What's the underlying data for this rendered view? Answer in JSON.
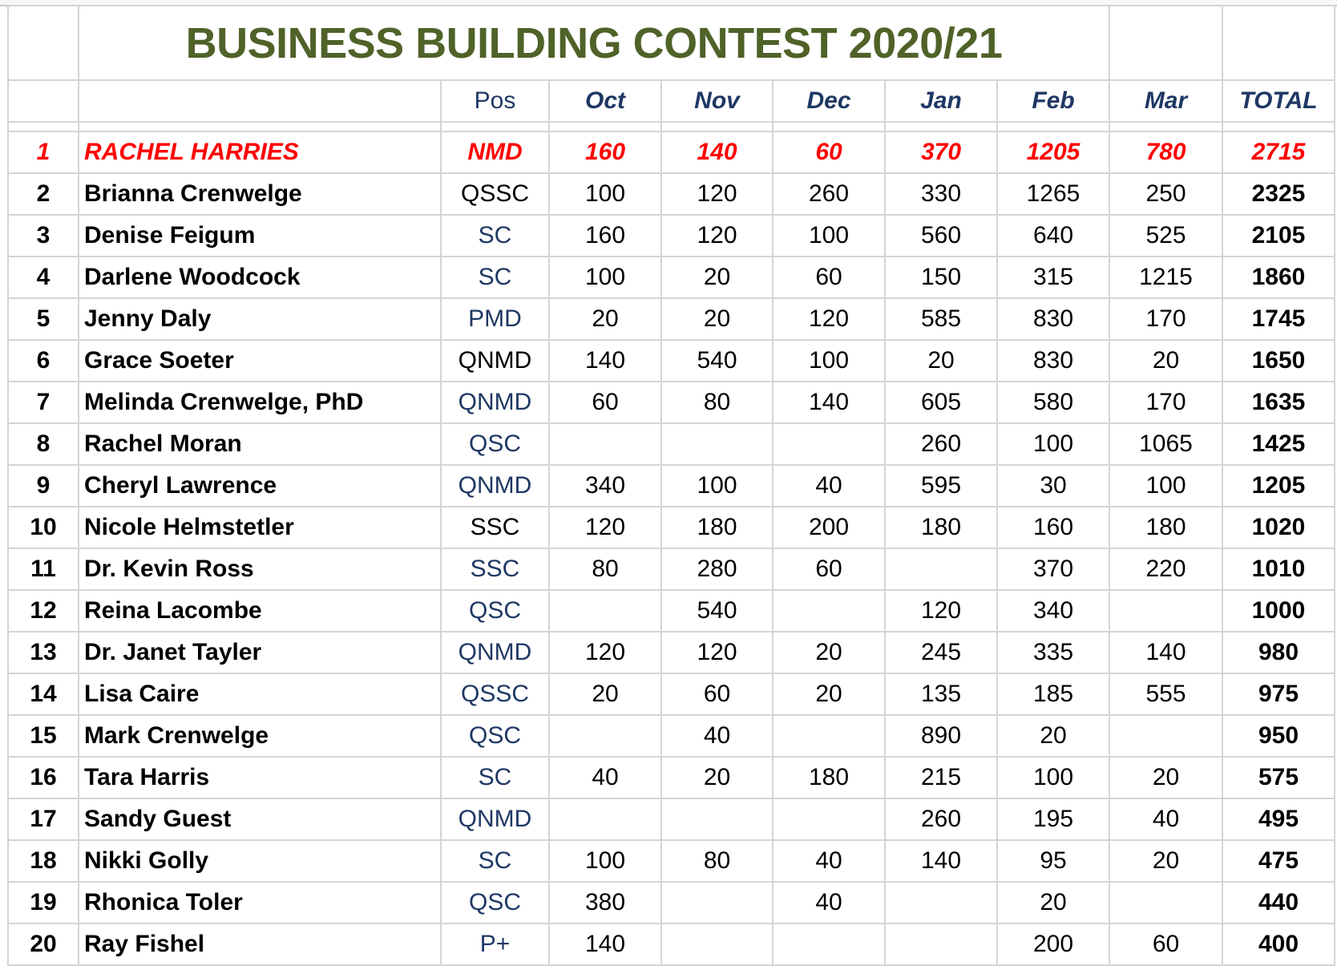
{
  "title": "BUSINESS BUILDING CONTEST 2020/21",
  "headers": {
    "pos": "Pos",
    "months": [
      "Oct",
      "Nov",
      "Dec",
      "Jan",
      "Feb",
      "Mar"
    ],
    "total": "TOTAL"
  },
  "colors": {
    "title": "#4f6228",
    "header": "#1f3864",
    "leader": "#ff0000",
    "pos_blue": "#1f3864"
  },
  "rows": [
    {
      "rank": "1",
      "name": "RACHEL HARRIES",
      "pos": "NMD",
      "pos_color": "red",
      "m": [
        "160",
        "140",
        "60",
        "370",
        "1205",
        "780"
      ],
      "total": "2715"
    },
    {
      "rank": "2",
      "name": "Brianna Crenwelge",
      "pos": "QSSC",
      "pos_color": "black",
      "m": [
        "100",
        "120",
        "260",
        "330",
        "1265",
        "250"
      ],
      "total": "2325"
    },
    {
      "rank": "3",
      "name": "Denise Feigum",
      "pos": "SC",
      "pos_color": "blue",
      "m": [
        "160",
        "120",
        "100",
        "560",
        "640",
        "525"
      ],
      "total": "2105"
    },
    {
      "rank": "4",
      "name": "Darlene Woodcock",
      "pos": "SC",
      "pos_color": "blue",
      "m": [
        "100",
        "20",
        "60",
        "150",
        "315",
        "1215"
      ],
      "total": "1860"
    },
    {
      "rank": "5",
      "name": "Jenny Daly",
      "pos": "PMD",
      "pos_color": "blue",
      "m": [
        "20",
        "20",
        "120",
        "585",
        "830",
        "170"
      ],
      "total": "1745"
    },
    {
      "rank": "6",
      "name": "Grace Soeter",
      "pos": "QNMD",
      "pos_color": "black",
      "m": [
        "140",
        "540",
        "100",
        "20",
        "830",
        "20"
      ],
      "total": "1650"
    },
    {
      "rank": "7",
      "name": "Melinda Crenwelge, PhD",
      "pos": "QNMD",
      "pos_color": "blue",
      "m": [
        "60",
        "80",
        "140",
        "605",
        "580",
        "170"
      ],
      "total": "1635"
    },
    {
      "rank": "8",
      "name": "Rachel Moran",
      "pos": "QSC",
      "pos_color": "blue",
      "m": [
        "",
        "",
        "",
        "260",
        "100",
        "1065"
      ],
      "total": "1425"
    },
    {
      "rank": "9",
      "name": "Cheryl Lawrence",
      "pos": "QNMD",
      "pos_color": "blue",
      "m": [
        "340",
        "100",
        "40",
        "595",
        "30",
        "100"
      ],
      "total": "1205"
    },
    {
      "rank": "10",
      "name": "Nicole Helmstetler",
      "pos": "SSC",
      "pos_color": "black",
      "m": [
        "120",
        "180",
        "200",
        "180",
        "160",
        "180"
      ],
      "total": "1020"
    },
    {
      "rank": "11",
      "name": "Dr. Kevin Ross",
      "pos": "SSC",
      "pos_color": "blue",
      "m": [
        "80",
        "280",
        "60",
        "",
        "370",
        "220"
      ],
      "total": "1010"
    },
    {
      "rank": "12",
      "name": "Reina Lacombe",
      "pos": "QSC",
      "pos_color": "blue",
      "m": [
        "",
        "540",
        "",
        "120",
        "340",
        ""
      ],
      "total": "1000"
    },
    {
      "rank": "13",
      "name": "Dr. Janet Tayler",
      "pos": "QNMD",
      "pos_color": "blue",
      "m": [
        "120",
        "120",
        "20",
        "245",
        "335",
        "140"
      ],
      "total": "980"
    },
    {
      "rank": "14",
      "name": "Lisa Caire",
      "pos": "QSSC",
      "pos_color": "blue",
      "m": [
        "20",
        "60",
        "20",
        "135",
        "185",
        "555"
      ],
      "total": "975"
    },
    {
      "rank": "15",
      "name": "Mark Crenwelge",
      "pos": "QSC",
      "pos_color": "blue",
      "m": [
        "",
        "40",
        "",
        "890",
        "20",
        ""
      ],
      "total": "950"
    },
    {
      "rank": "16",
      "name": "Tara Harris",
      "pos": "SC",
      "pos_color": "blue",
      "m": [
        "40",
        "20",
        "180",
        "215",
        "100",
        "20"
      ],
      "total": "575"
    },
    {
      "rank": "17",
      "name": "Sandy Guest",
      "pos": "QNMD",
      "pos_color": "blue",
      "m": [
        "",
        "",
        "",
        "260",
        "195",
        "40"
      ],
      "total": "495"
    },
    {
      "rank": "18",
      "name": "Nikki Golly",
      "pos": "SC",
      "pos_color": "blue",
      "m": [
        "100",
        "80",
        "40",
        "140",
        "95",
        "20"
      ],
      "total": "475"
    },
    {
      "rank": "19",
      "name": "Rhonica Toler",
      "pos": "QSC",
      "pos_color": "blue",
      "m": [
        "380",
        "",
        "40",
        "",
        "20",
        ""
      ],
      "total": "440"
    },
    {
      "rank": "20",
      "name": "Ray Fishel",
      "pos": "P+",
      "pos_color": "blue",
      "m": [
        "140",
        "",
        "",
        "",
        "200",
        "60"
      ],
      "total": "400"
    }
  ]
}
